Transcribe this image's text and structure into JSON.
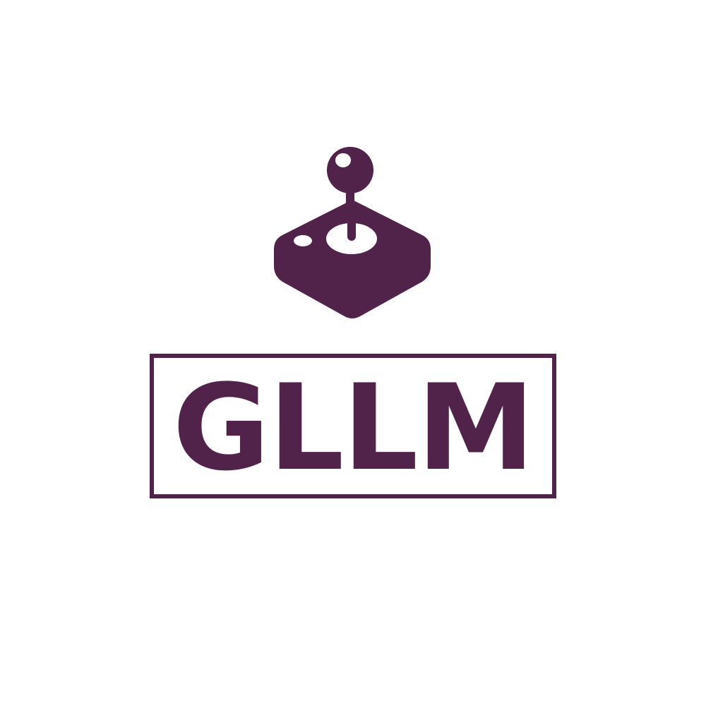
{
  "logo": {
    "icon": "joystick-icon",
    "wordmark": "GLLM",
    "color": "#51234a",
    "background": "#ffffff"
  }
}
